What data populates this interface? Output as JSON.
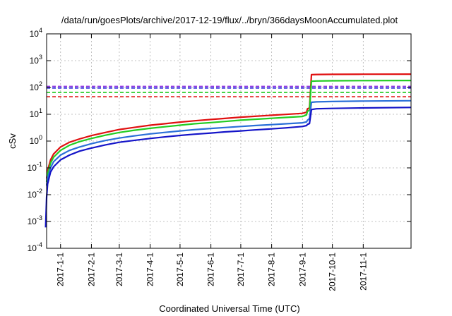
{
  "chart_data": {
    "type": "line",
    "title": "/data/run/goesPlots/archive/2017-12-19/flux/../bryn/366daysMoonAccumulated.plot",
    "xlabel": "Coordinated Universal Time (UTC)",
    "ylabel": "cSv",
    "x_range": [
      "2016-12-18",
      "2017-12-19"
    ],
    "y_log": true,
    "ylim": [
      0.0001,
      10000
    ],
    "grid": true,
    "x_ticks": [
      {
        "date": "2017-01-01",
        "label": "2017-1-1"
      },
      {
        "date": "2017-02-01",
        "label": "2017-2-1"
      },
      {
        "date": "2017-03-01",
        "label": "2017-3-1"
      },
      {
        "date": "2017-04-01",
        "label": "2017-4-1"
      },
      {
        "date": "2017-05-01",
        "label": "2017-5-1"
      },
      {
        "date": "2017-06-01",
        "label": "2017-6-1"
      },
      {
        "date": "2017-07-01",
        "label": "2017-7-1"
      },
      {
        "date": "2017-08-01",
        "label": "2017-8-1"
      },
      {
        "date": "2017-09-01",
        "label": "2017-9-1"
      },
      {
        "date": "2017-10-01",
        "label": "2017-10-1"
      },
      {
        "date": "2017-11-01",
        "label": "2017-11-1"
      }
    ],
    "y_ticks": [
      {
        "value": 0.0001,
        "base": "10",
        "exp": "-4"
      },
      {
        "value": 0.001,
        "base": "10",
        "exp": "-3"
      },
      {
        "value": 0.01,
        "base": "10",
        "exp": "-2"
      },
      {
        "value": 0.1,
        "base": "10",
        "exp": "-1"
      },
      {
        "value": 1,
        "base": "10",
        "exp": "0"
      },
      {
        "value": 10,
        "base": "10",
        "exp": "1"
      },
      {
        "value": 100,
        "base": "10",
        "exp": "2"
      },
      {
        "value": 1000,
        "base": "10",
        "exp": "3"
      },
      {
        "value": 10000,
        "base": "10",
        "exp": "4"
      }
    ],
    "thresholds": [
      {
        "value": 110,
        "color": "#8a2be2"
      },
      {
        "value": 95,
        "color": "#1a1ad8"
      },
      {
        "value": 65,
        "color": "#22cc22"
      },
      {
        "value": 45,
        "color": "#e01010"
      }
    ],
    "series": [
      {
        "color": "#e01010",
        "points": [
          [
            "2016-12-18",
            0.04
          ],
          [
            "2016-12-19",
            0.08
          ],
          [
            "2016-12-22",
            0.2
          ],
          [
            "2016-12-25",
            0.33
          ],
          [
            "2017-01-01",
            0.6
          ],
          [
            "2017-01-10",
            0.9
          ],
          [
            "2017-01-20",
            1.2
          ],
          [
            "2017-02-01",
            1.6
          ],
          [
            "2017-02-15",
            2.1
          ],
          [
            "2017-03-01",
            2.7
          ],
          [
            "2017-03-15",
            3.2
          ],
          [
            "2017-04-01",
            3.9
          ],
          [
            "2017-04-15",
            4.4
          ],
          [
            "2017-05-01",
            5.1
          ],
          [
            "2017-05-15",
            5.7
          ],
          [
            "2017-06-01",
            6.4
          ],
          [
            "2017-06-15",
            7.0
          ],
          [
            "2017-07-01",
            7.8
          ],
          [
            "2017-07-15",
            8.4
          ],
          [
            "2017-08-01",
            9.2
          ],
          [
            "2017-08-15",
            9.9
          ],
          [
            "2017-09-01",
            10.8
          ],
          [
            "2017-09-05",
            12
          ],
          [
            "2017-09-06",
            16
          ],
          [
            "2017-09-08",
            17
          ],
          [
            "2017-09-10",
            300
          ],
          [
            "2017-09-15",
            305
          ],
          [
            "2017-10-01",
            308
          ],
          [
            "2017-11-01",
            312
          ],
          [
            "2017-12-19",
            315
          ]
        ]
      },
      {
        "color": "#22cc22",
        "points": [
          [
            "2016-12-18",
            0.03
          ],
          [
            "2016-12-19",
            0.06
          ],
          [
            "2016-12-22",
            0.15
          ],
          [
            "2016-12-25",
            0.25
          ],
          [
            "2017-01-01",
            0.45
          ],
          [
            "2017-01-10",
            0.7
          ],
          [
            "2017-01-20",
            0.95
          ],
          [
            "2017-02-01",
            1.25
          ],
          [
            "2017-02-15",
            1.65
          ],
          [
            "2017-03-01",
            2.1
          ],
          [
            "2017-03-15",
            2.5
          ],
          [
            "2017-04-01",
            3.0
          ],
          [
            "2017-04-15",
            3.4
          ],
          [
            "2017-05-01",
            3.9
          ],
          [
            "2017-05-15",
            4.4
          ],
          [
            "2017-06-01",
            4.9
          ],
          [
            "2017-06-15",
            5.4
          ],
          [
            "2017-07-01",
            6.0
          ],
          [
            "2017-07-15",
            6.5
          ],
          [
            "2017-08-01",
            7.1
          ],
          [
            "2017-08-15",
            7.6
          ],
          [
            "2017-09-01",
            8.3
          ],
          [
            "2017-09-05",
            9.5
          ],
          [
            "2017-09-06",
            13
          ],
          [
            "2017-09-08",
            14
          ],
          [
            "2017-09-10",
            170
          ],
          [
            "2017-09-15",
            175
          ],
          [
            "2017-10-01",
            178
          ],
          [
            "2017-11-01",
            180
          ],
          [
            "2017-12-19",
            182
          ]
        ]
      },
      {
        "color": "#2a6fd8",
        "points": [
          [
            "2016-12-18",
            0.022
          ],
          [
            "2016-12-19",
            0.04
          ],
          [
            "2016-12-22",
            0.1
          ],
          [
            "2016-12-25",
            0.17
          ],
          [
            "2017-01-01",
            0.3
          ],
          [
            "2017-01-10",
            0.45
          ],
          [
            "2017-01-20",
            0.6
          ],
          [
            "2017-02-01",
            0.8
          ],
          [
            "2017-02-15",
            1.05
          ],
          [
            "2017-03-01",
            1.3
          ],
          [
            "2017-03-15",
            1.55
          ],
          [
            "2017-04-01",
            1.85
          ],
          [
            "2017-04-15",
            2.1
          ],
          [
            "2017-05-01",
            2.4
          ],
          [
            "2017-05-15",
            2.65
          ],
          [
            "2017-06-01",
            2.95
          ],
          [
            "2017-06-15",
            3.2
          ],
          [
            "2017-07-01",
            3.5
          ],
          [
            "2017-07-15",
            3.8
          ],
          [
            "2017-08-01",
            4.1
          ],
          [
            "2017-08-15",
            4.4
          ],
          [
            "2017-09-01",
            4.8
          ],
          [
            "2017-09-05",
            5.2
          ],
          [
            "2017-09-06",
            6
          ],
          [
            "2017-09-08",
            7
          ],
          [
            "2017-09-10",
            28
          ],
          [
            "2017-09-15",
            29
          ],
          [
            "2017-10-01",
            30
          ],
          [
            "2017-11-01",
            31
          ],
          [
            "2017-12-19",
            32
          ]
        ]
      },
      {
        "color": "#1414c8",
        "points": [
          [
            "2016-12-17",
            0.0006
          ],
          [
            "2016-12-18",
            0.008
          ],
          [
            "2016-12-19",
            0.025
          ],
          [
            "2016-12-22",
            0.07
          ],
          [
            "2016-12-25",
            0.11
          ],
          [
            "2017-01-01",
            0.2
          ],
          [
            "2017-01-10",
            0.3
          ],
          [
            "2017-01-20",
            0.42
          ],
          [
            "2017-02-01",
            0.55
          ],
          [
            "2017-02-15",
            0.72
          ],
          [
            "2017-03-01",
            0.9
          ],
          [
            "2017-03-15",
            1.05
          ],
          [
            "2017-04-01",
            1.25
          ],
          [
            "2017-04-15",
            1.42
          ],
          [
            "2017-05-01",
            1.62
          ],
          [
            "2017-05-15",
            1.8
          ],
          [
            "2017-06-01",
            2.0
          ],
          [
            "2017-06-15",
            2.2
          ],
          [
            "2017-07-01",
            2.4
          ],
          [
            "2017-07-15",
            2.6
          ],
          [
            "2017-08-01",
            2.85
          ],
          [
            "2017-08-15",
            3.1
          ],
          [
            "2017-09-01",
            3.5
          ],
          [
            "2017-09-05",
            3.8
          ],
          [
            "2017-09-06",
            4.2
          ],
          [
            "2017-09-08",
            4.5
          ],
          [
            "2017-09-10",
            15
          ],
          [
            "2017-09-15",
            16
          ],
          [
            "2017-10-01",
            16.5
          ],
          [
            "2017-11-01",
            17.2
          ],
          [
            "2017-12-19",
            18
          ]
        ]
      }
    ]
  }
}
